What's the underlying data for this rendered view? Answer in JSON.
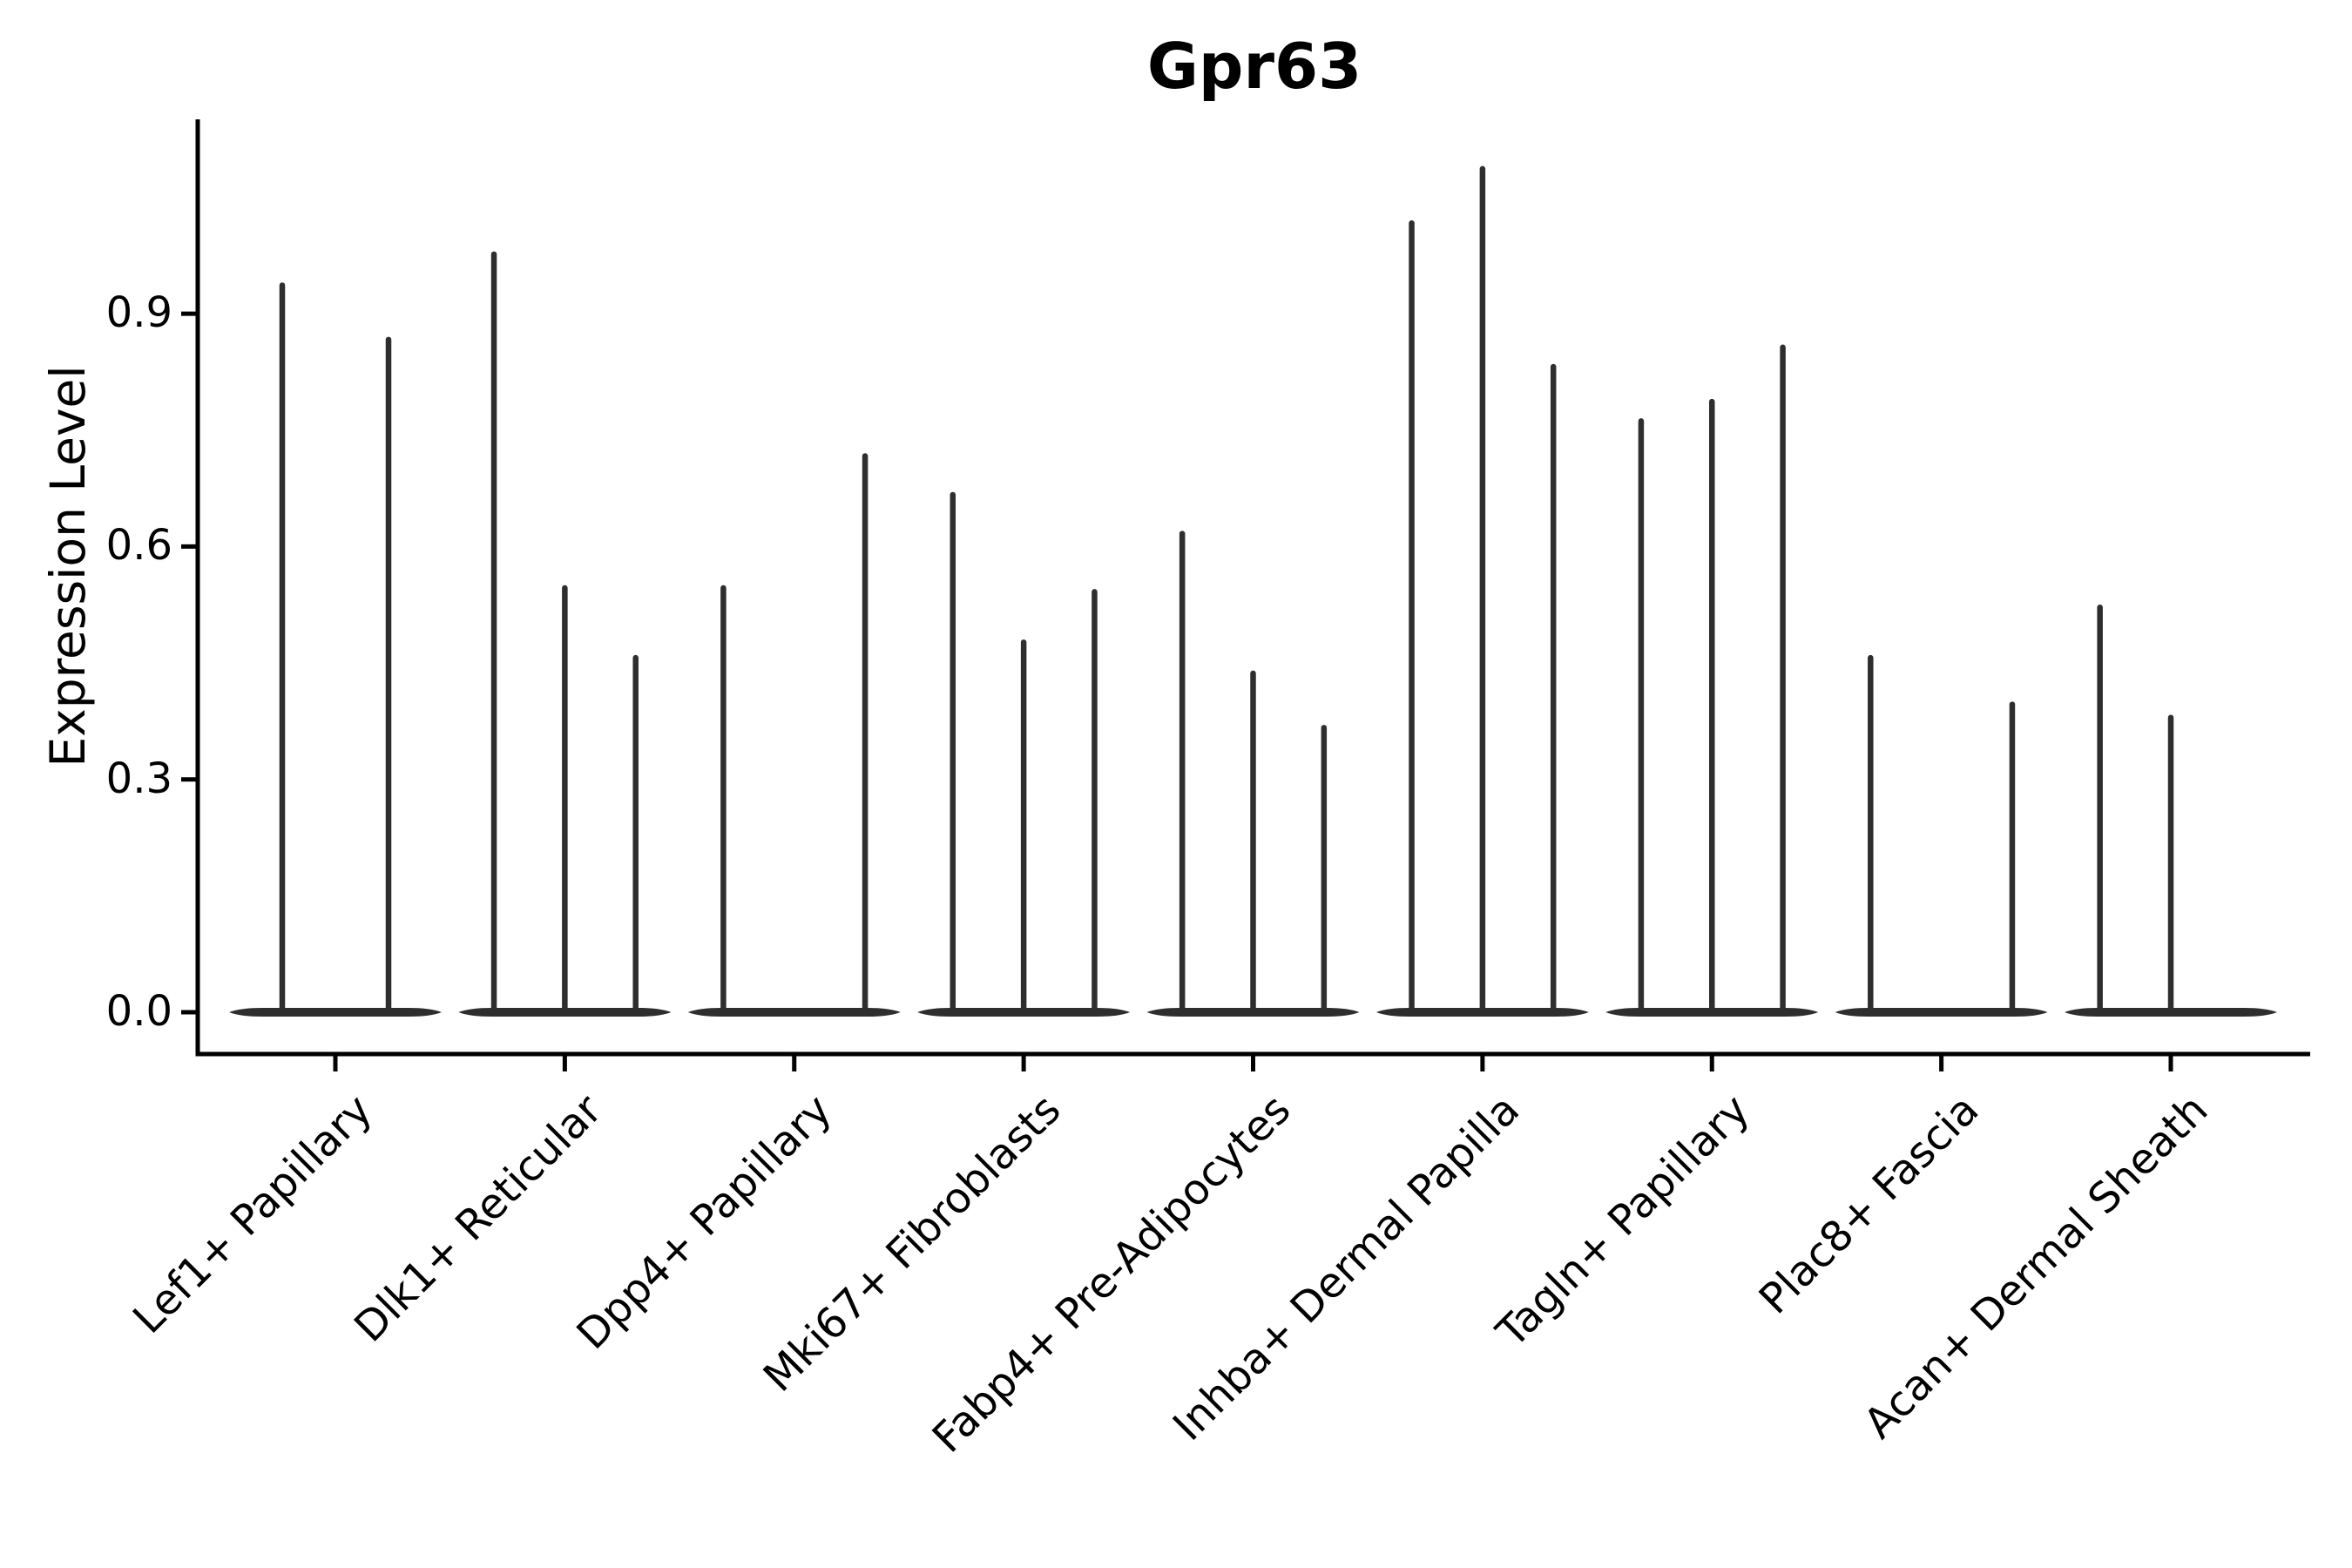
{
  "page": {
    "background_color": "#ffffff"
  },
  "chart_data": {
    "type": "violin",
    "title": "Gpr63",
    "ylabel": "Expression Level",
    "xlabel": "",
    "grid": false,
    "legend": "none",
    "ytick_labels": [
      "0.0",
      "0.3",
      "0.6",
      "0.9"
    ],
    "ytick_values": [
      0.0,
      0.3,
      0.6,
      0.9
    ],
    "ylim": [
      -0.054,
      1.15
    ],
    "categories": [
      "Lef1+ Papillary",
      "Dlk1+ Reticular",
      "Dpp4+ Papillary",
      "Mki67+ Fibroblasts",
      "Fabp4+ Pre-Adipocytes",
      "Inhba+ Dermal Papilla",
      "Tagln+ Papillary",
      "Plac8+ Fascia",
      "Acan+ Dermal Sheath"
    ],
    "groups": [
      {
        "category": "Lef1+ Papillary",
        "violins": [
          {
            "max": 0.94
          },
          {
            "max": 0.87
          }
        ]
      },
      {
        "category": "Dlk1+ Reticular",
        "violins": [
          {
            "max": 0.98
          },
          {
            "max": 0.55
          },
          {
            "max": 0.46
          }
        ]
      },
      {
        "category": "Dpp4+ Papillary",
        "violins": [
          {
            "max": 0.55
          },
          {
            "max": 0
          },
          {
            "max": 0.72
          }
        ]
      },
      {
        "category": "Mki67+ Fibroblasts",
        "violins": [
          {
            "max": 0.67
          },
          {
            "max": 0.48
          },
          {
            "max": 0.545
          }
        ]
      },
      {
        "category": "Fabp4+ Pre-Adipocytes",
        "violins": [
          {
            "max": 0.62
          },
          {
            "max": 0.44
          },
          {
            "max": 0.37
          }
        ]
      },
      {
        "category": "Inhba+ Dermal Papilla",
        "violins": [
          {
            "max": 1.02
          },
          {
            "max": 1.09
          },
          {
            "max": 0.835
          }
        ]
      },
      {
        "category": "Tagln+ Papillary",
        "violins": [
          {
            "max": 0.765
          },
          {
            "max": 0.79
          },
          {
            "max": 0.86
          }
        ]
      },
      {
        "category": "Plac8+ Fascia",
        "violins": [
          {
            "max": 0.46
          },
          {
            "max": 0
          },
          {
            "max": 0.4
          }
        ]
      },
      {
        "category": "Acan+ Dermal Sheath",
        "violins": [
          {
            "max": 0.525
          },
          {
            "max": 0.383
          },
          {
            "max": 0
          }
        ]
      }
    ],
    "colors": {
      "violin": "#2e2e2e",
      "axis": "#000000",
      "text": "#000000"
    }
  }
}
